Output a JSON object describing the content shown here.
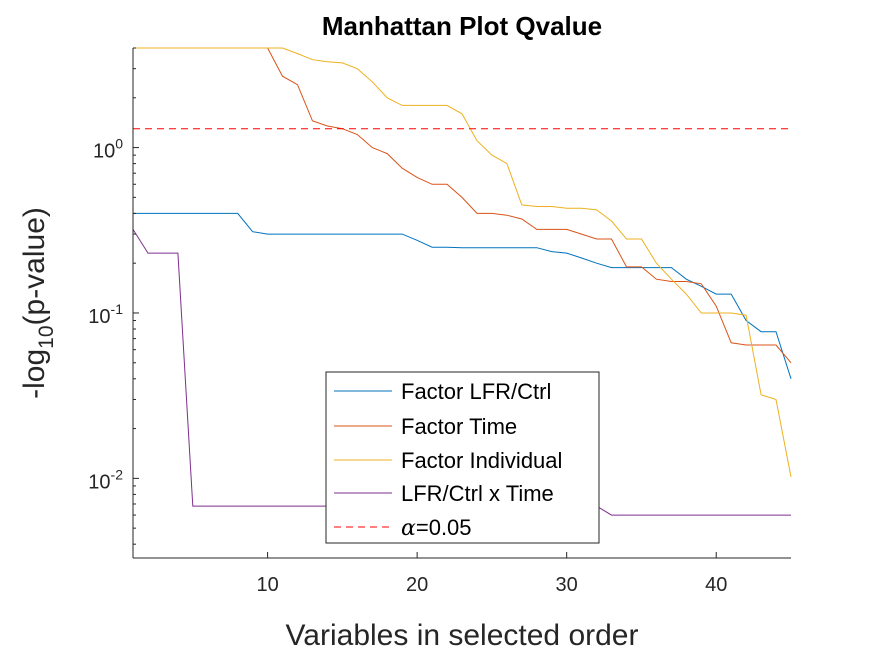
{
  "chart_data": {
    "type": "line",
    "title": "Manhattan Plot Qvalue",
    "xlabel": "Variables in selected order",
    "ylabel": "-log10(p-value)",
    "ylabel_main": "-log",
    "ylabel_sub": "10",
    "ylabel_rest": "(p-value)",
    "yscale": "log",
    "xlim": [
      1,
      45
    ],
    "ylim": [
      0.0033,
      4
    ],
    "grid": false,
    "legend_position": "bottom-center",
    "x_ticks": [
      {
        "value": 10,
        "label": "10"
      },
      {
        "value": 20,
        "label": "20"
      },
      {
        "value": 30,
        "label": "30"
      },
      {
        "value": 40,
        "label": "40"
      }
    ],
    "y_ticks": [
      {
        "value": 1,
        "base": "10",
        "exp": "0"
      },
      {
        "value": 0.1,
        "base": "10",
        "exp": "-1"
      },
      {
        "value": 0.01,
        "base": "10",
        "exp": "-2"
      }
    ],
    "series": [
      {
        "name": "Factor LFR/Ctrl",
        "color": "#0072BD",
        "style": "solid",
        "x": [
          1,
          2,
          3,
          4,
          5,
          6,
          7,
          8,
          9,
          10,
          11,
          12,
          13,
          14,
          15,
          16,
          17,
          18,
          19,
          20,
          21,
          22,
          23,
          24,
          25,
          26,
          27,
          28,
          29,
          30,
          31,
          32,
          33,
          34,
          35,
          36,
          37,
          38,
          39,
          40,
          41,
          42,
          43,
          44,
          45
        ],
        "y": [
          0.4,
          0.4,
          0.4,
          0.4,
          0.4,
          0.4,
          0.4,
          0.4,
          0.31,
          0.3,
          0.3,
          0.3,
          0.3,
          0.3,
          0.3,
          0.3,
          0.3,
          0.3,
          0.3,
          0.275,
          0.25,
          0.25,
          0.248,
          0.248,
          0.248,
          0.248,
          0.248,
          0.248,
          0.235,
          0.23,
          0.215,
          0.2,
          0.188,
          0.188,
          0.188,
          0.188,
          0.188,
          0.16,
          0.145,
          0.13,
          0.13,
          0.09,
          0.077,
          0.077,
          0.04
        ]
      },
      {
        "name": "Factor Time",
        "color": "#D95319",
        "style": "solid",
        "x": [
          1,
          2,
          3,
          4,
          5,
          6,
          7,
          8,
          9,
          10,
          11,
          12,
          13,
          14,
          15,
          16,
          17,
          18,
          19,
          20,
          21,
          22,
          23,
          24,
          25,
          26,
          27,
          28,
          29,
          30,
          31,
          32,
          33,
          34,
          35,
          36,
          37,
          38,
          39,
          40,
          41,
          42,
          43,
          44,
          45
        ],
        "y": [
          4,
          4,
          4,
          4,
          4,
          4,
          4,
          4,
          4,
          4,
          2.7,
          2.4,
          1.45,
          1.35,
          1.3,
          1.2,
          1.0,
          0.92,
          0.75,
          0.66,
          0.6,
          0.6,
          0.5,
          0.4,
          0.4,
          0.39,
          0.37,
          0.32,
          0.32,
          0.32,
          0.3,
          0.28,
          0.28,
          0.19,
          0.19,
          0.16,
          0.155,
          0.155,
          0.15,
          0.11,
          0.066,
          0.064,
          0.064,
          0.064,
          0.05
        ]
      },
      {
        "name": "Factor Individual",
        "color": "#EDB120",
        "style": "solid",
        "x": [
          1,
          2,
          3,
          4,
          5,
          6,
          7,
          8,
          9,
          10,
          11,
          12,
          13,
          14,
          15,
          16,
          17,
          18,
          19,
          20,
          21,
          22,
          23,
          24,
          25,
          26,
          27,
          28,
          29,
          30,
          31,
          32,
          33,
          34,
          35,
          36,
          37,
          38,
          39,
          40,
          41,
          42,
          43,
          44,
          45
        ],
        "y": [
          4,
          4,
          4,
          4,
          4,
          4,
          4,
          4,
          4,
          4,
          4,
          3.7,
          3.4,
          3.3,
          3.25,
          3.0,
          2.5,
          2.0,
          1.8,
          1.8,
          1.8,
          1.8,
          1.6,
          1.1,
          0.9,
          0.8,
          0.45,
          0.44,
          0.44,
          0.43,
          0.43,
          0.42,
          0.36,
          0.28,
          0.28,
          0.2,
          0.16,
          0.13,
          0.1,
          0.1,
          0.1,
          0.097,
          0.032,
          0.03,
          0.0102
        ]
      },
      {
        "name": "LFR/Ctrl x Time",
        "color": "#7E2F8E",
        "style": "solid",
        "x": [
          1,
          2,
          3,
          4,
          5,
          6,
          7,
          8,
          9,
          10,
          11,
          12,
          13,
          14,
          15,
          16,
          17,
          18,
          19,
          20,
          21,
          22,
          23,
          24,
          25,
          26,
          27,
          28,
          29,
          30,
          31,
          32,
          33,
          34,
          35,
          36,
          37,
          38,
          39,
          40,
          41,
          42,
          43,
          44,
          45
        ],
        "y": [
          0.32,
          0.23,
          0.23,
          0.23,
          0.0068,
          0.0068,
          0.0068,
          0.0068,
          0.0068,
          0.0068,
          0.0068,
          0.0068,
          0.0068,
          0.0068,
          0.0068,
          0.0068,
          0.0068,
          0.0068,
          0.0068,
          0.0068,
          0.0068,
          0.0068,
          0.0068,
          0.0068,
          0.0068,
          0.0068,
          0.0068,
          0.0068,
          0.0068,
          0.0068,
          0.0068,
          0.0068,
          0.006,
          0.006,
          0.006,
          0.006,
          0.006,
          0.006,
          0.006,
          0.006,
          0.006,
          0.006,
          0.006,
          0.006,
          0.006
        ]
      },
      {
        "name": "α=0.05",
        "name_symbol": "α",
        "name_rest": "=0.05",
        "color": "#FF0000",
        "style": "dashed",
        "x": [
          1,
          45
        ],
        "y": [
          1.3,
          1.3
        ]
      }
    ]
  }
}
